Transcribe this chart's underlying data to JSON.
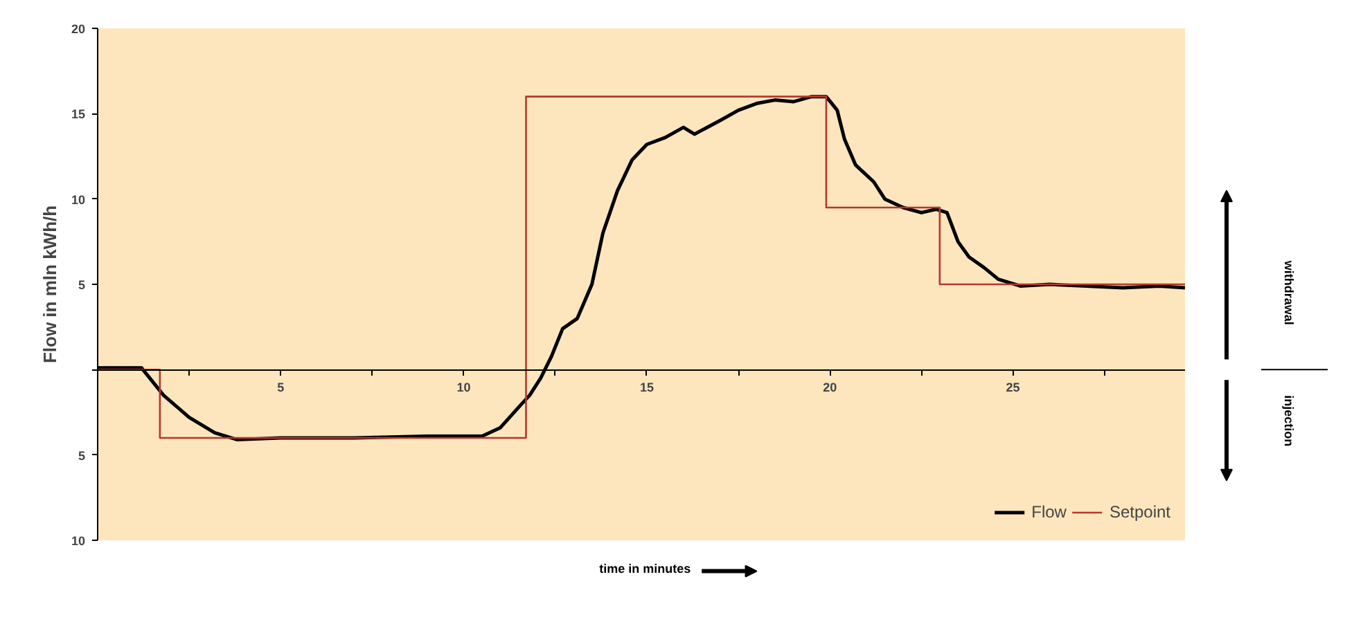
{
  "chart_data": {
    "type": "line",
    "xlabel": "time in minutes",
    "ylabel": "Flow in mln kWh/h",
    "annotations": [
      "withdrawal",
      "injection"
    ],
    "xlim": [
      0,
      29.7
    ],
    "ylim": [
      -10,
      20
    ],
    "xticks": [
      {
        "value": 2.5,
        "label": null
      },
      5,
      {
        "value": 7.5,
        "label": null
      },
      10,
      {
        "value": 12.5,
        "label": null
      },
      15,
      {
        "value": 17.5,
        "label": null
      },
      20,
      {
        "value": 22.5,
        "label": null
      },
      25,
      {
        "value": 27.5,
        "label": null
      }
    ],
    "yticks": [
      20,
      15,
      10,
      5,
      {
        "value": 0,
        "label": null
      },
      {
        "value": -5,
        "label": "5"
      },
      {
        "value": -10,
        "label": "10"
      }
    ],
    "line_style": "solid",
    "legend": "bottom right",
    "grid": false,
    "series": [
      {
        "name": "Flow",
        "color": "#000000",
        "x": [
          0,
          1.2,
          1.8,
          2.5,
          3.2,
          3.8,
          5,
          7,
          9,
          10.5,
          11,
          11.5,
          11.8,
          12.1,
          12.4,
          12.7,
          13.1,
          13.5,
          13.8,
          14.2,
          14.6,
          15,
          15.5,
          16,
          16.3,
          17,
          17.5,
          18,
          18.5,
          19,
          19.5,
          19.9,
          20.2,
          20.4,
          20.7,
          21.2,
          21.5,
          22,
          22.5,
          22.9,
          23.2,
          23.5,
          23.8,
          24.2,
          24.6,
          25.2,
          26,
          27,
          28,
          29,
          29.7
        ],
        "values": [
          0.1,
          0.1,
          -1.5,
          -2.8,
          -3.7,
          -4.1,
          -4.0,
          -4.0,
          -3.9,
          -3.9,
          -3.4,
          -2.2,
          -1.5,
          -0.5,
          0.8,
          2.4,
          3.0,
          5,
          8,
          10.5,
          12.3,
          13.2,
          13.6,
          14.2,
          13.8,
          14.6,
          15.2,
          15.6,
          15.8,
          15.7,
          16,
          16,
          15.2,
          13.5,
          12,
          11,
          10,
          9.5,
          9.2,
          9.4,
          9.2,
          7.5,
          6.6,
          6,
          5.3,
          4.9,
          5.0,
          4.9,
          4.8,
          4.9,
          4.8
        ]
      },
      {
        "name": "Setpoint",
        "color": "#b8362b",
        "type": "step",
        "x": [
          0,
          1.7,
          11.7,
          19.9,
          23.0,
          29.7
        ],
        "values": [
          0,
          -4,
          16,
          9.5,
          5,
          5
        ]
      }
    ]
  }
}
